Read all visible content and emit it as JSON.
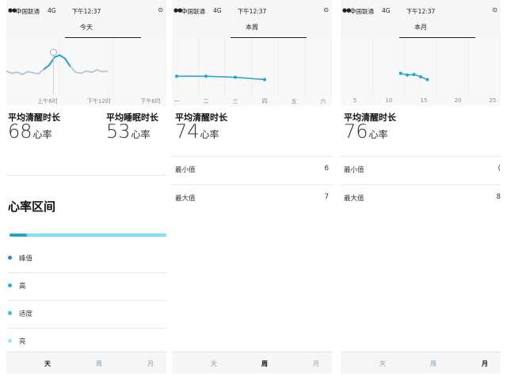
{
  "colors": {
    "accent": "#1ea3d6",
    "accent_light": "#7fe0f7",
    "peak": "#1a8ed0",
    "high": "#1cb3e3",
    "moderate": "#24c5ea",
    "light": "#8fe6f7"
  },
  "status": {
    "signal": "●●○",
    "carrier": "中国联通",
    "network": "4G",
    "time": "下午12:37",
    "location_icon": "location-icon"
  },
  "panels": [
    {
      "title": "今天",
      "axis_ticks": [
        "上午6时",
        "下午12时",
        "下午6时"
      ],
      "stats": [
        {
          "label": "平均清醒时长",
          "value": "68",
          "unit": "心率"
        },
        {
          "label": "平均睡眠时长",
          "value": "53",
          "unit": "心率"
        }
      ],
      "zones_title": "心率区间",
      "zones": [
        "峰值",
        "高",
        "适度",
        "亮"
      ],
      "tabs": [
        "天",
        "周",
        "月"
      ],
      "active_tab": "天"
    },
    {
      "title": "本周",
      "axis_ticks": [
        "一",
        "二",
        "三",
        "四",
        "五",
        "六"
      ],
      "stats": [
        {
          "label": "平均清醒时长",
          "value": "74",
          "unit": "心率"
        }
      ],
      "rows": [
        {
          "label": "最小值",
          "value": "6"
        },
        {
          "label": "最大值",
          "value": "7"
        }
      ],
      "tabs": [
        "天",
        "周",
        "月"
      ],
      "active_tab": "周"
    },
    {
      "title": "本月",
      "axis_ticks": [
        "5",
        "10",
        "15",
        "20",
        "25"
      ],
      "stats": [
        {
          "label": "平均清醒时长",
          "value": "76",
          "unit": "心率"
        }
      ],
      "rows": [
        {
          "label": "最小值",
          "value": "("
        },
        {
          "label": "最大值",
          "value": "8"
        }
      ],
      "tabs": [
        "天",
        "周",
        "月"
      ],
      "active_tab": "月"
    }
  ],
  "chart_data": [
    {
      "type": "line",
      "title": "今天",
      "x_ticks": [
        "上午6时",
        "下午12时",
        "下午6时"
      ],
      "series": [
        {
          "values": [
            0.42,
            0.38,
            0.4,
            0.36,
            0.41,
            0.39,
            0.37,
            0.45,
            0.52,
            0.66,
            0.7,
            0.64,
            0.5,
            0.4,
            0.38,
            0.42,
            0.4,
            0.44,
            0.41,
            0.42
          ]
        }
      ],
      "ylim": [
        0,
        1
      ]
    },
    {
      "type": "line",
      "title": "本周",
      "categories": [
        "一",
        "二",
        "三",
        "四",
        "五",
        "六"
      ],
      "series": [
        {
          "values": [
            0.33,
            0.33,
            0.31,
            0.27,
            null,
            null
          ]
        }
      ],
      "ylim": [
        0,
        1
      ]
    },
    {
      "type": "line",
      "title": "本月",
      "x": [
        12,
        13,
        14,
        15,
        16
      ],
      "x_ticks": [
        "5",
        "10",
        "15",
        "20",
        "25"
      ],
      "xlim": [
        3,
        27
      ],
      "series": [
        {
          "values": [
            0.38,
            0.35,
            0.36,
            0.32,
            0.27
          ]
        }
      ],
      "ylim": [
        0,
        1
      ]
    }
  ]
}
